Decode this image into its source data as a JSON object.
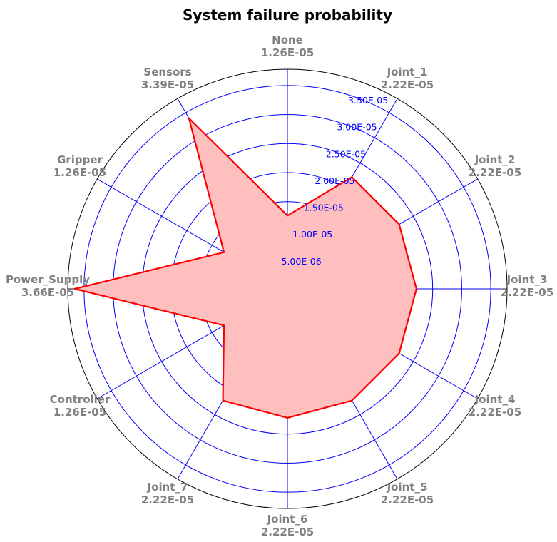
{
  "chart_data": {
    "type": "radar",
    "title": "System failure probability",
    "categories": [
      "None",
      "Joint_1",
      "Joint_2",
      "Joint_3",
      "Joint_4",
      "Joint_5",
      "Joint_6",
      "Joint_7",
      "Controller",
      "Power_Supply",
      "Gripper",
      "Sensors"
    ],
    "value_labels": [
      "1.26E-05",
      "2.22E-05",
      "2.22E-05",
      "2.22E-05",
      "2.22E-05",
      "2.22E-05",
      "2.22E-05",
      "2.22E-05",
      "1.26E-05",
      "3.66E-05",
      "1.26E-05",
      "3.39E-05"
    ],
    "series": [
      {
        "values": [
          1.26e-05,
          2.22e-05,
          2.22e-05,
          2.22e-05,
          2.22e-05,
          2.22e-05,
          2.22e-05,
          2.22e-05,
          1.26e-05,
          3.66e-05,
          1.26e-05,
          3.39e-05
        ]
      }
    ],
    "r_ticks": [
      5e-06,
      1e-05,
      1.5e-05,
      2e-05,
      2.5e-05,
      3e-05,
      3.5e-05
    ],
    "r_tick_labels": [
      "5.00E-06",
      "1.00E-05",
      "1.50E-05",
      "2.00E-05",
      "2.50E-05",
      "3.00E-05",
      "3.50E-05"
    ],
    "r_max": 3.78e-05,
    "grid": true,
    "colors": {
      "line": "#ff0000",
      "fill": "#ffbfbf",
      "grid": "#0000ff",
      "labels": "#808080",
      "outer_ring": "#000000"
    }
  }
}
